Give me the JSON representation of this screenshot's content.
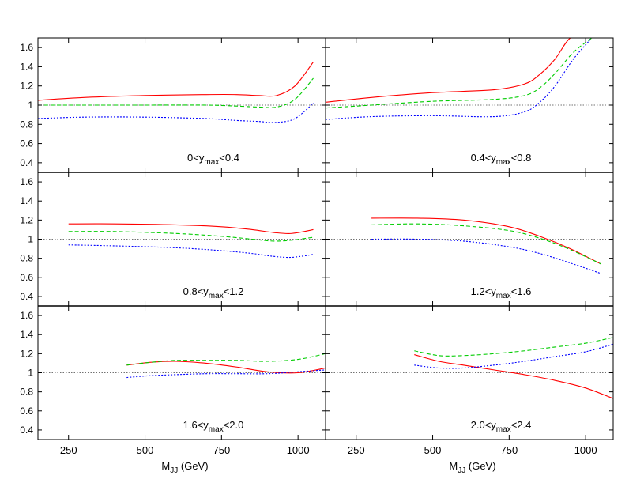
{
  "chart_data": {
    "type": "line",
    "layout": "3 rows x 2 columns of panels sharing axes",
    "xlabel_main": "M",
    "xlabel_sub": "JJ",
    "xlabel_unit": " (GeV)",
    "xticks": [
      250,
      500,
      750,
      1000
    ],
    "yticks": [
      "1.6",
      "1.4",
      "1.2",
      "1",
      "0.8",
      "0.6",
      "0.4"
    ],
    "ylim": [
      0.3,
      1.7
    ],
    "reference_line": 1.0,
    "series_colors": [
      "#ff0000",
      "#00cc00",
      "#0000ff"
    ],
    "series_styles": [
      "solid",
      "dashed",
      "dotted"
    ],
    "panels": [
      {
        "label": {
          "pre": "0<y",
          "sub": "max",
          "post": "<0.4"
        },
        "xlim": [
          150,
          1090
        ],
        "series": [
          {
            "x": [
              150,
              300,
              500,
              700,
              800,
              870,
              930,
              990,
              1050
            ],
            "y": [
              1.05,
              1.08,
              1.1,
              1.11,
              1.11,
              1.1,
              1.1,
              1.2,
              1.45
            ]
          },
          {
            "x": [
              150,
              300,
              500,
              700,
              800,
              870,
              930,
              990,
              1050
            ],
            "y": [
              1.0,
              1.0,
              1.0,
              1.0,
              0.99,
              0.98,
              0.98,
              1.06,
              1.28
            ]
          },
          {
            "x": [
              150,
              300,
              500,
              700,
              800,
              870,
              930,
              990,
              1050
            ],
            "y": [
              0.86,
              0.875,
              0.875,
              0.86,
              0.84,
              0.83,
              0.82,
              0.86,
              1.02
            ]
          }
        ]
      },
      {
        "label": {
          "pre": "0.4<y",
          "sub": "max",
          "post": "<0.8"
        },
        "xlim": [
          150,
          1090
        ],
        "series": [
          {
            "x": [
              150,
              300,
              500,
              700,
              800,
              850,
              900,
              950,
              1000
            ],
            "y": [
              1.03,
              1.08,
              1.13,
              1.16,
              1.22,
              1.32,
              1.48,
              1.7,
              1.7
            ]
          },
          {
            "x": [
              150,
              300,
              500,
              700,
              800,
              850,
              900,
              960,
              1020
            ],
            "y": [
              0.97,
              1.0,
              1.04,
              1.06,
              1.1,
              1.18,
              1.33,
              1.55,
              1.7
            ]
          },
          {
            "x": [
              150,
              300,
              500,
              700,
              800,
              850,
              900,
              960,
              1020
            ],
            "y": [
              0.85,
              0.88,
              0.89,
              0.88,
              0.93,
              1.03,
              1.2,
              1.48,
              1.7
            ]
          }
        ]
      },
      {
        "label": {
          "pre": "0.8<y",
          "sub": "max",
          "post": "<1.2"
        },
        "xlim": [
          150,
          1090
        ],
        "series": [
          {
            "x": [
              250,
              400,
              600,
              750,
              850,
              920,
              980,
              1050
            ],
            "y": [
              1.16,
              1.16,
              1.15,
              1.13,
              1.1,
              1.07,
              1.06,
              1.1
            ]
          },
          {
            "x": [
              250,
              400,
              600,
              750,
              850,
              920,
              980,
              1050
            ],
            "y": [
              1.08,
              1.08,
              1.06,
              1.03,
              1.0,
              0.98,
              0.99,
              1.02
            ]
          },
          {
            "x": [
              250,
              400,
              600,
              750,
              850,
              920,
              980,
              1050
            ],
            "y": [
              0.94,
              0.93,
              0.91,
              0.88,
              0.85,
              0.82,
              0.81,
              0.84
            ]
          }
        ]
      },
      {
        "label": {
          "pre": "1.2<y",
          "sub": "max",
          "post": "<1.6"
        },
        "xlim": [
          150,
          1090
        ],
        "series": [
          {
            "x": [
              300,
              450,
              600,
              750,
              850,
              950,
              1050
            ],
            "y": [
              1.22,
              1.22,
              1.2,
              1.13,
              1.03,
              0.9,
              0.74
            ]
          },
          {
            "x": [
              300,
              450,
              600,
              750,
              850,
              950,
              1050
            ],
            "y": [
              1.15,
              1.16,
              1.14,
              1.09,
              1.01,
              0.89,
              0.74
            ]
          },
          {
            "x": [
              300,
              450,
              600,
              750,
              850,
              950,
              1050
            ],
            "y": [
              1.0,
              1.0,
              0.98,
              0.92,
              0.85,
              0.75,
              0.64
            ]
          }
        ]
      },
      {
        "label": {
          "pre": "1.6<y",
          "sub": "max",
          "post": "<2.0"
        },
        "xlim": [
          150,
          1090
        ],
        "series": [
          {
            "x": [
              440,
              520,
              600,
              700,
              800,
              900,
              1000,
              1090
            ],
            "y": [
              1.08,
              1.11,
              1.12,
              1.1,
              1.06,
              1.01,
              1.0,
              1.05
            ]
          },
          {
            "x": [
              440,
              520,
              600,
              700,
              800,
              900,
              1000,
              1090
            ],
            "y": [
              1.08,
              1.11,
              1.13,
              1.13,
              1.13,
              1.12,
              1.14,
              1.2
            ]
          },
          {
            "x": [
              440,
              520,
              600,
              700,
              800,
              900,
              1000,
              1090
            ],
            "y": [
              0.95,
              0.97,
              0.98,
              0.99,
              0.99,
              0.99,
              1.01,
              1.03
            ]
          }
        ]
      },
      {
        "label": {
          "pre": "2.0<y",
          "sub": "max",
          "post": "<2.4"
        },
        "xlim": [
          150,
          1090
        ],
        "series": [
          {
            "x": [
              440,
              520,
              600,
              700,
              800,
              900,
              1000,
              1090
            ],
            "y": [
              1.19,
              1.12,
              1.08,
              1.03,
              0.98,
              0.92,
              0.84,
              0.73
            ]
          },
          {
            "x": [
              440,
              520,
              600,
              700,
              800,
              900,
              1000,
              1090
            ],
            "y": [
              1.23,
              1.18,
              1.18,
              1.2,
              1.23,
              1.27,
              1.31,
              1.37
            ]
          },
          {
            "x": [
              440,
              520,
              600,
              700,
              800,
              900,
              1000,
              1090
            ],
            "y": [
              1.08,
              1.05,
              1.05,
              1.08,
              1.12,
              1.17,
              1.22,
              1.3
            ]
          }
        ]
      }
    ]
  }
}
